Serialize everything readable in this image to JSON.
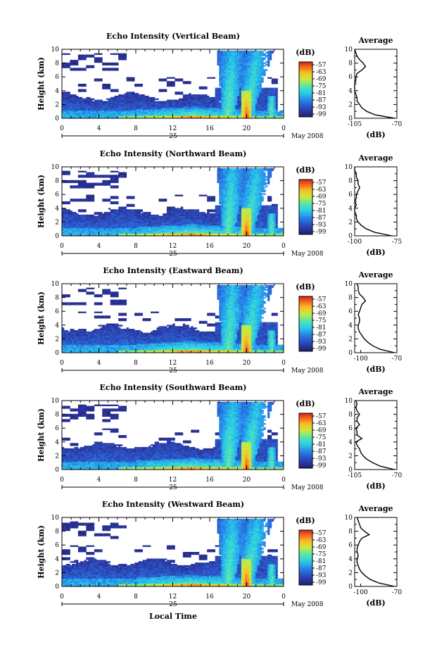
{
  "chart_data": [
    {
      "type": "heatmap",
      "title": "Echo Intensity (Vertical Beam)",
      "ylabel": "Height (km)",
      "y_ticks": [
        "0",
        "2",
        "4",
        "6",
        "8",
        "10"
      ],
      "x_ticks": [
        "0",
        "4",
        "8",
        "12",
        "16",
        "20",
        "0"
      ],
      "date_day": "25",
      "date_month": "May 2008",
      "ylim": [
        0,
        10
      ],
      "xlim_hours": [
        0,
        24
      ],
      "colorbar": {
        "title": "(dB)",
        "ticks": [
          "-57",
          "-63",
          "-69",
          "-75",
          "-81",
          "-87",
          "-93",
          "-99"
        ]
      },
      "features": {
        "cloud_tops_km": 3.0,
        "rain_shafts_h": [
          18.0,
          20.0,
          22.7
        ],
        "rain_core_h": 20.0
      },
      "avg": {
        "title": "Average",
        "xlabel": "(dB)",
        "x_ticks": [
          "-105",
          "-70"
        ],
        "xlim": [
          -105,
          -70
        ],
        "profile": [
          [
            0,
            -72
          ],
          [
            0.5,
            -88
          ],
          [
            1,
            -95
          ],
          [
            1.5,
            -99
          ],
          [
            2,
            -101
          ],
          [
            2.5,
            -103
          ],
          [
            3,
            -103
          ],
          [
            3.5,
            -104
          ],
          [
            4,
            -105
          ],
          [
            4.5,
            -105
          ],
          [
            5,
            -105
          ],
          [
            5.5,
            -104
          ],
          [
            6,
            -104
          ],
          [
            6.5,
            -103
          ],
          [
            7,
            -99
          ],
          [
            7.5,
            -96
          ],
          [
            8,
            -98
          ],
          [
            8.5,
            -101
          ],
          [
            9,
            -103
          ],
          [
            9.5,
            -104
          ],
          [
            10,
            -105
          ]
        ]
      }
    },
    {
      "type": "heatmap",
      "title": "Echo Intensity (Northward Beam)",
      "ylabel": "Height (km)",
      "y_ticks": [
        "0",
        "2",
        "4",
        "6",
        "8",
        "10"
      ],
      "x_ticks": [
        "0",
        "4",
        "8",
        "12",
        "16",
        "20",
        "0"
      ],
      "date_day": "25",
      "date_month": "May 2008",
      "ylim": [
        0,
        10
      ],
      "xlim_hours": [
        0,
        24
      ],
      "colorbar": {
        "title": "(dB)",
        "ticks": [
          "-57",
          "-63",
          "-69",
          "-75",
          "-81",
          "-87",
          "-93",
          "-99"
        ]
      },
      "features": {
        "cloud_tops_km": 3.6,
        "rain_shafts_h": [
          18.0,
          20.0,
          22.7
        ],
        "rain_core_h": 20.0
      },
      "avg": {
        "title": "Average",
        "xlabel": "(dB)",
        "x_ticks": [
          "-100",
          "-75"
        ],
        "xlim": [
          -100,
          -75
        ],
        "profile": [
          [
            0,
            -78
          ],
          [
            0.5,
            -88
          ],
          [
            1,
            -93
          ],
          [
            1.5,
            -96
          ],
          [
            2,
            -98
          ],
          [
            2.5,
            -99
          ],
          [
            3,
            -99
          ],
          [
            3.5,
            -100
          ],
          [
            4,
            -100
          ],
          [
            4.5,
            -99
          ],
          [
            5,
            -100
          ],
          [
            5.5,
            -99
          ],
          [
            6,
            -99
          ],
          [
            6.5,
            -98
          ],
          [
            7,
            -97
          ],
          [
            7.5,
            -98
          ],
          [
            8,
            -98
          ],
          [
            8.5,
            -99
          ],
          [
            9,
            -99
          ],
          [
            9.5,
            -100
          ],
          [
            10,
            -100
          ]
        ]
      }
    },
    {
      "type": "heatmap",
      "title": "Echo Intensity (Eastward Beam)",
      "ylabel": "Height (km)",
      "y_ticks": [
        "0",
        "2",
        "4",
        "6",
        "8",
        "10"
      ],
      "x_ticks": [
        "0",
        "4",
        "8",
        "12",
        "16",
        "20",
        "0"
      ],
      "date_day": "25",
      "date_month": "May 2008",
      "ylim": [
        0,
        10
      ],
      "xlim_hours": [
        0,
        24
      ],
      "colorbar": {
        "title": "(dB)",
        "ticks": [
          "-57",
          "-63",
          "-69",
          "-75",
          "-81",
          "-87",
          "-93",
          "-99"
        ]
      },
      "features": {
        "cloud_tops_km": 3.6,
        "rain_shafts_h": [
          18.0,
          20.0,
          22.7
        ],
        "rain_core_h": 20.0
      },
      "avg": {
        "title": "Average",
        "xlabel": "(dB)",
        "x_ticks": [
          "-100",
          "-70"
        ],
        "xlim": [
          -105,
          -70
        ],
        "profile": [
          [
            0,
            -72
          ],
          [
            0.5,
            -84
          ],
          [
            1,
            -90
          ],
          [
            1.5,
            -94
          ],
          [
            2,
            -97
          ],
          [
            2.5,
            -99
          ],
          [
            3,
            -101
          ],
          [
            3.5,
            -102
          ],
          [
            4,
            -102
          ],
          [
            4.5,
            -101
          ],
          [
            5,
            -101
          ],
          [
            5.5,
            -102
          ],
          [
            6,
            -101
          ],
          [
            6.5,
            -100
          ],
          [
            7,
            -99
          ],
          [
            7.5,
            -96
          ],
          [
            8,
            -98
          ],
          [
            8.5,
            -101
          ],
          [
            9,
            -102
          ],
          [
            9.5,
            -102
          ],
          [
            10,
            -103
          ]
        ]
      }
    },
    {
      "type": "heatmap",
      "title": "Echo Intensity (Southward Beam)",
      "ylabel": "Height (km)",
      "y_ticks": [
        "0",
        "2",
        "4",
        "6",
        "8",
        "10"
      ],
      "x_ticks": [
        "0",
        "4",
        "8",
        "12",
        "16",
        "20",
        "0"
      ],
      "date_day": "25",
      "date_month": "May 2008",
      "ylim": [
        0,
        10
      ],
      "xlim_hours": [
        0,
        24
      ],
      "colorbar": {
        "title": "(dB)",
        "ticks": [
          "-57",
          "-63",
          "-69",
          "-75",
          "-81",
          "-87",
          "-93",
          "-99"
        ]
      },
      "features": {
        "cloud_tops_km": 3.6,
        "rain_shafts_h": [
          18.0,
          20.0,
          22.7
        ],
        "rain_core_h": 20.0
      },
      "avg": {
        "title": "Average",
        "xlabel": "(dB)",
        "x_ticks": [
          "-105",
          "-70"
        ],
        "xlim": [
          -105,
          -70
        ],
        "profile": [
          [
            0,
            -72
          ],
          [
            0.5,
            -84
          ],
          [
            1,
            -90
          ],
          [
            1.5,
            -95
          ],
          [
            2,
            -98
          ],
          [
            2.5,
            -100
          ],
          [
            3,
            -101
          ],
          [
            3.5,
            -103
          ],
          [
            4,
            -104
          ],
          [
            4.5,
            -99
          ],
          [
            5,
            -103
          ],
          [
            5.5,
            -103
          ],
          [
            6,
            -104
          ],
          [
            6.5,
            -101
          ],
          [
            7,
            -103
          ],
          [
            7.5,
            -103
          ],
          [
            8,
            -101
          ],
          [
            8.5,
            -103
          ],
          [
            9,
            -104
          ],
          [
            9.5,
            -103
          ],
          [
            10,
            -104
          ]
        ]
      }
    },
    {
      "type": "heatmap",
      "title": "Echo Intensity (Westward Beam)",
      "ylabel": "Height (km)",
      "y_ticks": [
        "0",
        "2",
        "4",
        "6",
        "8",
        "10"
      ],
      "x_ticks": [
        "0",
        "4",
        "8",
        "12",
        "16",
        "20",
        "0"
      ],
      "date_day": "25",
      "date_month": "May 2008",
      "ylim": [
        0,
        10
      ],
      "xlim_hours": [
        0,
        24
      ],
      "colorbar": {
        "title": "(dB)",
        "ticks": [
          "-57",
          "-63",
          "-69",
          "-75",
          "-81",
          "-87",
          "-93",
          "-99"
        ]
      },
      "features": {
        "cloud_tops_km": 3.6,
        "rain_shafts_h": [
          18.0,
          20.0,
          22.7
        ],
        "rain_core_h": 20.0
      },
      "avg": {
        "title": "Average",
        "xlabel": "(dB)",
        "x_ticks": [
          "-100",
          "-70"
        ],
        "xlim": [
          -105,
          -70
        ],
        "profile": [
          [
            0,
            -72
          ],
          [
            0.5,
            -85
          ],
          [
            1,
            -92
          ],
          [
            1.5,
            -96
          ],
          [
            2,
            -99
          ],
          [
            2.5,
            -101
          ],
          [
            3,
            -102
          ],
          [
            3.5,
            -103
          ],
          [
            4,
            -103
          ],
          [
            4.5,
            -102
          ],
          [
            5,
            -103
          ],
          [
            5.5,
            -103
          ],
          [
            6,
            -102
          ],
          [
            6.5,
            -101
          ],
          [
            7,
            -99
          ],
          [
            7.5,
            -93
          ],
          [
            8,
            -97
          ],
          [
            8.5,
            -100
          ],
          [
            9,
            -101
          ],
          [
            9.5,
            -102
          ],
          [
            10,
            -103
          ]
        ]
      }
    }
  ],
  "xlabel": "Local Time"
}
